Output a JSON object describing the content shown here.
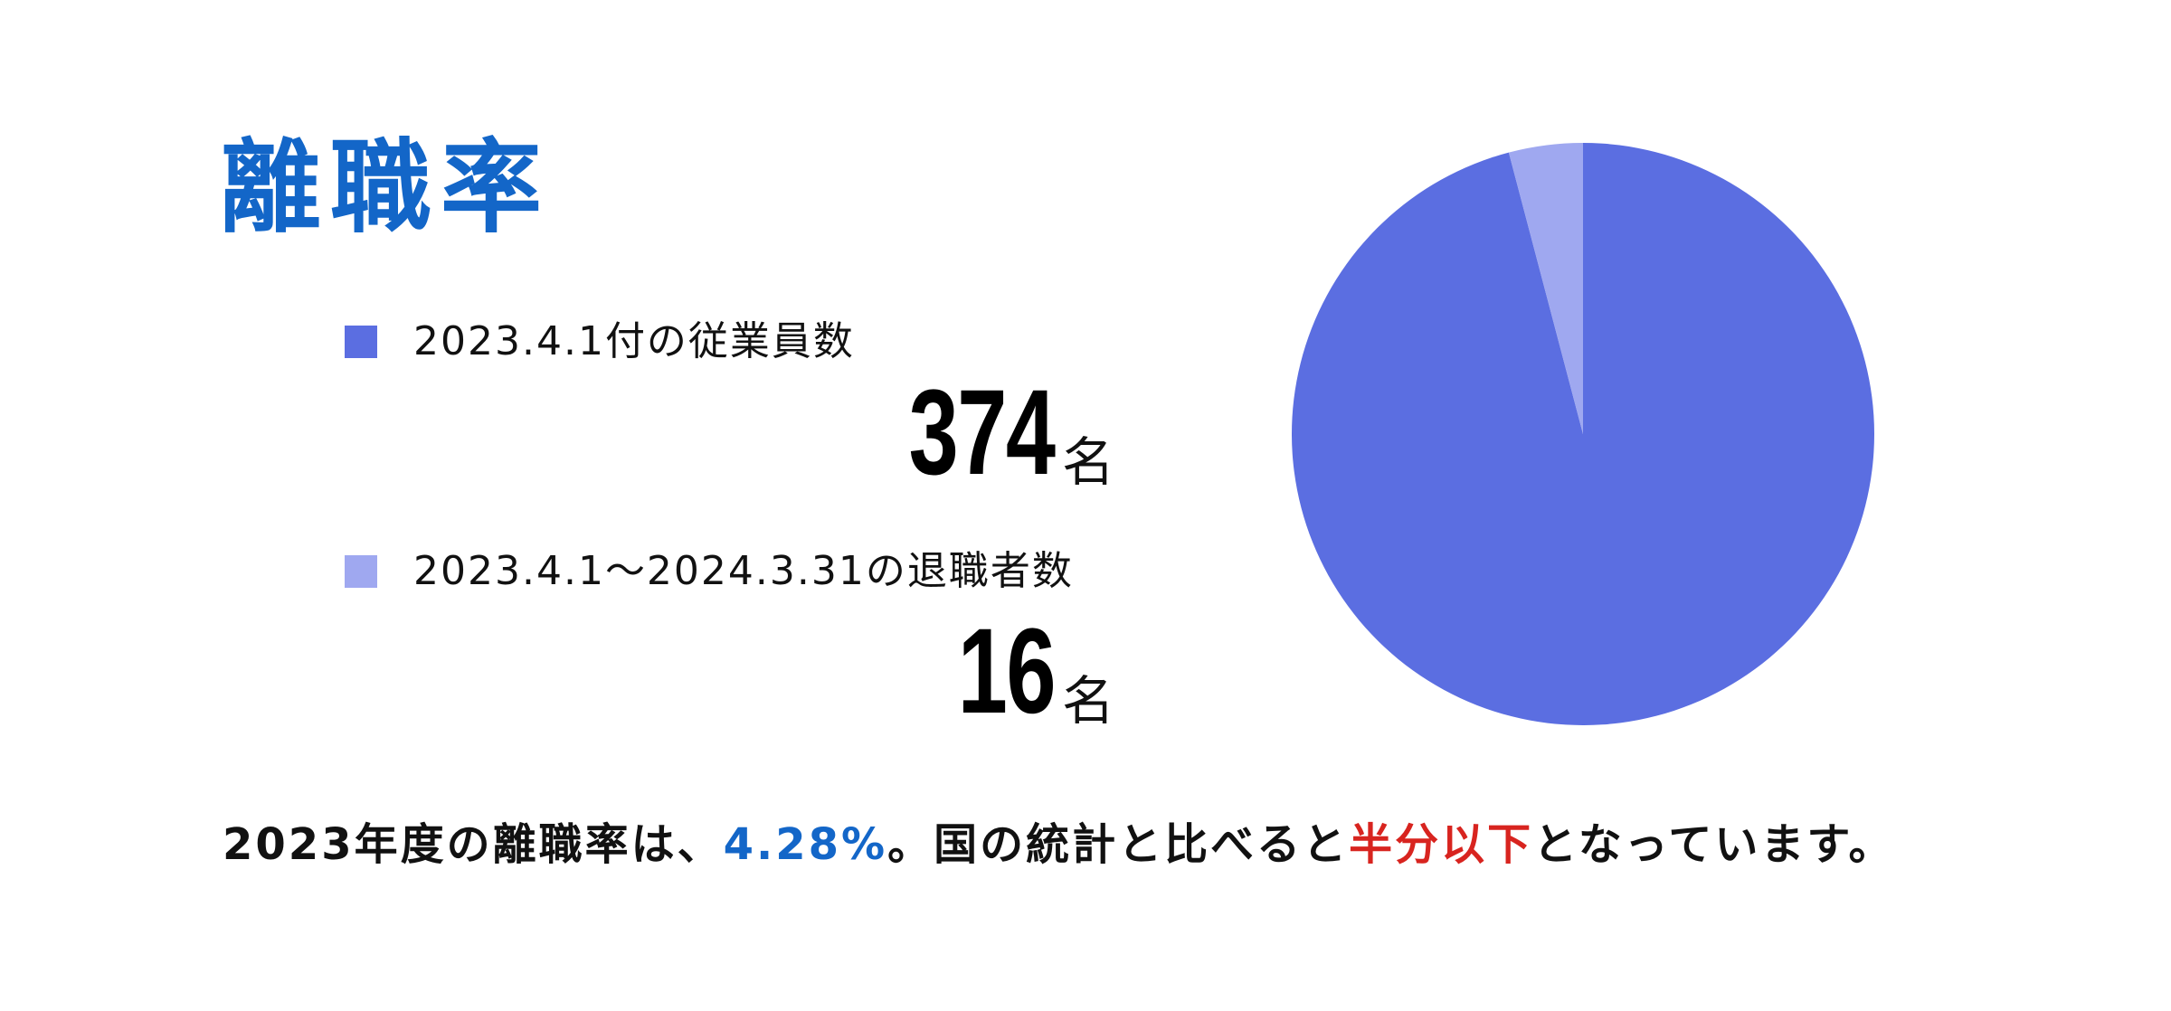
{
  "title": "離職率",
  "legend": [
    {
      "label": "2023.4.1付の従業員数",
      "value": "374",
      "unit": "名",
      "color": "#5b6ee1"
    },
    {
      "label": "2023.4.1〜2024.3.31の退職者数",
      "value": "16",
      "unit": "名",
      "color": "#9fa8f0"
    }
  ],
  "chart_data": {
    "type": "pie",
    "categories": [
      "2023.4.1付の従業員数",
      "2023.4.1〜2024.3.31の退職者数"
    ],
    "values": [
      374,
      16
    ],
    "colors": [
      "#5b6ee1",
      "#9fa8f0"
    ],
    "start_angle": "12 o'clock",
    "direction": "counterclockwise for the small slice"
  },
  "footer": {
    "part1": "2023年度の離職率は、",
    "rate": "4.28%",
    "part2": "。国の統計と比べると",
    "highlight": "半分以下",
    "part3": "となっています。",
    "rate_color": "#1366c8",
    "highlight_color": "#d8241f"
  }
}
